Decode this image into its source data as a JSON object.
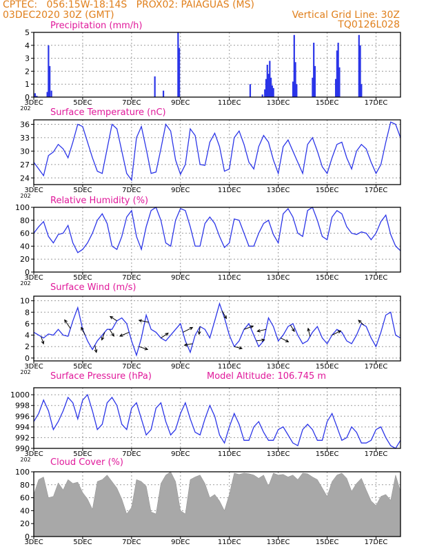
{
  "header": {
    "line1_left": "CPTEC:   056:15W-18:14S   PROX02: PAIAGUAS (MS)",
    "line2_left": "03DEC2020 30Z (GMT)",
    "line2_right": "Vertical Grid Line: 30Z",
    "line3_right": "TQ0126L028"
  },
  "colors": {
    "header": "#e07f1b",
    "title": "#e0189a",
    "series": "#2b35e8",
    "bars": "#2b35e8",
    "cloud": "#a8a8a8",
    "grid": "#9a9a9a"
  },
  "x_labels": [
    "3DEC",
    "5DEC",
    "7DEC",
    "9DEC",
    "11DEC",
    "13DEC",
    "15DEC",
    "17DEC"
  ],
  "x_year_fragment": "202",
  "chart_data": [
    {
      "id": "precip",
      "type": "bar",
      "title": "Precipitation (mm/h)",
      "ylim": [
        0,
        5
      ],
      "yticks": [
        0,
        1,
        2,
        3,
        4,
        5
      ],
      "points": [
        [
          0.05,
          0.3
        ],
        [
          0.12,
          0.1
        ],
        [
          0.55,
          0.4
        ],
        [
          0.6,
          4.0
        ],
        [
          0.65,
          2.4
        ],
        [
          0.72,
          0.5
        ],
        [
          4.95,
          1.6
        ],
        [
          5.3,
          0.5
        ],
        [
          5.9,
          5.0
        ],
        [
          5.95,
          3.8
        ],
        [
          8.85,
          1.0
        ],
        [
          9.35,
          0.2
        ],
        [
          9.45,
          0.6
        ],
        [
          9.5,
          1.4
        ],
        [
          9.55,
          2.5
        ],
        [
          9.6,
          1.8
        ],
        [
          9.65,
          2.8
        ],
        [
          9.7,
          1.5
        ],
        [
          9.75,
          0.9
        ],
        [
          9.8,
          0.7
        ],
        [
          10.6,
          1.2
        ],
        [
          10.65,
          4.8
        ],
        [
          10.7,
          2.7
        ],
        [
          10.75,
          1.0
        ],
        [
          11.4,
          1.5
        ],
        [
          11.45,
          4.2
        ],
        [
          11.5,
          2.4
        ],
        [
          12.35,
          1.4
        ],
        [
          12.4,
          3.6
        ],
        [
          12.45,
          4.2
        ],
        [
          12.5,
          2.3
        ],
        [
          13.3,
          4.8
        ],
        [
          13.35,
          4.0
        ],
        [
          13.4,
          1.0
        ]
      ]
    },
    {
      "id": "temp",
      "type": "line",
      "title": "Surface Temperature (nC)",
      "ylim": [
        22.5,
        37
      ],
      "yticks": [
        24,
        27,
        30,
        33,
        36
      ],
      "x": [
        0,
        0.2,
        0.4,
        0.6,
        0.8,
        1.0,
        1.2,
        1.4,
        1.6,
        1.8,
        2.0,
        2.2,
        2.4,
        2.6,
        2.8,
        3.0,
        3.2,
        3.4,
        3.6,
        3.8,
        4.0,
        4.2,
        4.4,
        4.6,
        4.8,
        5.0,
        5.2,
        5.4,
        5.6,
        5.8,
        6.0,
        6.2,
        6.4,
        6.6,
        6.8,
        7.0,
        7.2,
        7.4,
        7.6,
        7.8,
        8.0,
        8.2,
        8.4,
        8.6,
        8.8,
        9.0,
        9.2,
        9.4,
        9.6,
        9.8,
        10.0,
        10.2,
        10.4,
        10.6,
        10.8,
        11.0,
        11.2,
        11.4,
        11.6,
        11.8,
        12.0,
        12.2,
        12.4,
        12.6,
        12.8,
        13.0,
        13.2,
        13.4,
        13.6,
        13.8,
        14.0,
        14.2,
        14.4,
        14.6,
        14.8,
        15.0
      ],
      "values": [
        27.5,
        26,
        24.5,
        29,
        29.8,
        31.5,
        30.5,
        28.5,
        32,
        36,
        35.5,
        32,
        28.5,
        25.5,
        25,
        30.5,
        36,
        35,
        30,
        25,
        23.5,
        33,
        35.5,
        30.5,
        25,
        25.3,
        30.5,
        36,
        34.5,
        28,
        24.8,
        27,
        35,
        33.5,
        27,
        26.8,
        32,
        34,
        31,
        25.5,
        26,
        33,
        34.5,
        31.5,
        27.5,
        26,
        31,
        33.5,
        32,
        28,
        25,
        31,
        32.5,
        30,
        27.5,
        25,
        31.5,
        33,
        30,
        26.5,
        25,
        28.5,
        31.5,
        32,
        28.5,
        26,
        30,
        31.5,
        30.5,
        27.5,
        25,
        27,
        32,
        36.5,
        36,
        33
      ]
    },
    {
      "id": "rh",
      "type": "line",
      "title": "Relative Humidity (%)",
      "ylim": [
        0,
        100
      ],
      "yticks": [
        0,
        20,
        40,
        60,
        80,
        100
      ],
      "x": [
        0,
        0.2,
        0.4,
        0.6,
        0.8,
        1.0,
        1.2,
        1.4,
        1.6,
        1.8,
        2.0,
        2.2,
        2.4,
        2.6,
        2.8,
        3.0,
        3.2,
        3.4,
        3.6,
        3.8,
        4.0,
        4.2,
        4.4,
        4.6,
        4.8,
        5.0,
        5.2,
        5.4,
        5.6,
        5.8,
        6.0,
        6.2,
        6.4,
        6.6,
        6.8,
        7.0,
        7.2,
        7.4,
        7.6,
        7.8,
        8.0,
        8.2,
        8.4,
        8.6,
        8.8,
        9.0,
        9.2,
        9.4,
        9.6,
        9.8,
        10.0,
        10.2,
        10.4,
        10.6,
        10.8,
        11.0,
        11.2,
        11.4,
        11.6,
        11.8,
        12.0,
        12.2,
        12.4,
        12.6,
        12.8,
        13.0,
        13.2,
        13.4,
        13.6,
        13.8,
        14.0,
        14.2,
        14.4,
        14.6,
        14.8,
        15.0
      ],
      "values": [
        60,
        70,
        78,
        55,
        45,
        58,
        60,
        72,
        45,
        30,
        35,
        45,
        60,
        80,
        90,
        75,
        40,
        35,
        55,
        85,
        95,
        55,
        35,
        70,
        95,
        100,
        80,
        45,
        40,
        80,
        98,
        95,
        70,
        40,
        40,
        75,
        85,
        75,
        55,
        38,
        45,
        82,
        80,
        60,
        40,
        40,
        60,
        75,
        80,
        58,
        45,
        90,
        98,
        85,
        60,
        55,
        95,
        100,
        80,
        55,
        50,
        85,
        95,
        90,
        70,
        60,
        58,
        62,
        60,
        50,
        60,
        78,
        88,
        58,
        40,
        33
      ]
    },
    {
      "id": "wind",
      "type": "line",
      "title": "Surface Wind (m/s)",
      "ylim": [
        -0.5,
        10.8
      ],
      "yticks": [
        0,
        2,
        4,
        6,
        8,
        10
      ],
      "x": [
        0,
        0.2,
        0.4,
        0.6,
        0.8,
        1.0,
        1.2,
        1.4,
        1.6,
        1.8,
        2.0,
        2.2,
        2.4,
        2.6,
        2.8,
        3.0,
        3.2,
        3.4,
        3.6,
        3.8,
        4.0,
        4.2,
        4.4,
        4.6,
        4.8,
        5.0,
        5.2,
        5.4,
        5.6,
        5.8,
        6.0,
        6.2,
        6.4,
        6.6,
        6.8,
        7.0,
        7.2,
        7.4,
        7.6,
        7.8,
        8.0,
        8.2,
        8.4,
        8.6,
        8.8,
        9.0,
        9.2,
        9.4,
        9.6,
        9.8,
        10.0,
        10.2,
        10.4,
        10.6,
        10.8,
        11.0,
        11.2,
        11.4,
        11.6,
        11.8,
        12.0,
        12.2,
        12.4,
        12.6,
        12.8,
        13.0,
        13.2,
        13.4,
        13.6,
        13.8,
        14.0,
        14.2,
        14.4,
        14.6,
        14.8,
        15.0
      ],
      "values": [
        4.5,
        4,
        3.5,
        4.2,
        4,
        5,
        4,
        3.8,
        6.5,
        8.8,
        5,
        3,
        1.5,
        3,
        4,
        5,
        5,
        6.5,
        7,
        6,
        3,
        0.5,
        3.5,
        7.5,
        5,
        4.5,
        3.5,
        3,
        4,
        5,
        6,
        3,
        1,
        4,
        5.5,
        5,
        3.5,
        6.5,
        9.5,
        7,
        4,
        2,
        3,
        5,
        6,
        4,
        2,
        3,
        7,
        5.5,
        3,
        4,
        5.5,
        6,
        4,
        2.5,
        3,
        4.5,
        5.5,
        3.5,
        2.5,
        4,
        5,
        4.5,
        3,
        2.5,
        4,
        6,
        5.5,
        3.5,
        2,
        4.5,
        7.5,
        8,
        4,
        3.5
      ],
      "arrows": [
        [
          0.3,
          0.5,
          -1.5
        ],
        [
          1.5,
          -1.2,
          1.8
        ],
        [
          2.1,
          -0.8,
          1.6
        ],
        [
          2.5,
          0.3,
          -1.5
        ],
        [
          2.9,
          -0.6,
          -1.6
        ],
        [
          3.1,
          0.9,
          -1.4
        ],
        [
          3.4,
          -1.4,
          0.9
        ],
        [
          3.9,
          -1.9,
          -0.8
        ],
        [
          4.3,
          1.8,
          -0.6
        ],
        [
          4.7,
          -2.0,
          0.4
        ],
        [
          5.2,
          1.5,
          1.0
        ],
        [
          6.1,
          2.0,
          1.0
        ],
        [
          6.5,
          -1.7,
          -0.3
        ],
        [
          6.8,
          -0.2,
          -1.6
        ],
        [
          7.7,
          0.9,
          -1.6
        ],
        [
          8.2,
          1.6,
          -0.4
        ],
        [
          8.6,
          1.9,
          0.7
        ],
        [
          9.1,
          1.7,
          0.2
        ],
        [
          9.5,
          -1.8,
          -0.4
        ],
        [
          10.1,
          1.6,
          -0.8
        ],
        [
          10.5,
          0.8,
          -1.3
        ],
        [
          11.3,
          -0.4,
          1.7
        ],
        [
          12.2,
          1.8,
          0.9
        ],
        [
          13.5,
          -1.1,
          1.0
        ]
      ]
    },
    {
      "id": "pres",
      "type": "line",
      "title": "Surface Pressure (hPa)",
      "subtitle": "Model Altitude: 106.745 m",
      "ylim": [
        990,
        1001.3
      ],
      "yticks": [
        990,
        992,
        994,
        996,
        998,
        1000
      ],
      "x": [
        0,
        0.2,
        0.4,
        0.6,
        0.8,
        1.0,
        1.2,
        1.4,
        1.6,
        1.8,
        2.0,
        2.2,
        2.4,
        2.6,
        2.8,
        3.0,
        3.2,
        3.4,
        3.6,
        3.8,
        4.0,
        4.2,
        4.4,
        4.6,
        4.8,
        5.0,
        5.2,
        5.4,
        5.6,
        5.8,
        6.0,
        6.2,
        6.4,
        6.6,
        6.8,
        7.0,
        7.2,
        7.4,
        7.6,
        7.8,
        8.0,
        8.2,
        8.4,
        8.6,
        8.8,
        9.0,
        9.2,
        9.4,
        9.6,
        9.8,
        10.0,
        10.2,
        10.4,
        10.6,
        10.8,
        11.0,
        11.2,
        11.4,
        11.6,
        11.8,
        12.0,
        12.2,
        12.4,
        12.6,
        12.8,
        13.0,
        13.2,
        13.4,
        13.6,
        13.8,
        14.0,
        14.2,
        14.4,
        14.6,
        14.8,
        15.0
      ],
      "values": [
        995,
        996.5,
        999,
        997,
        993.5,
        995,
        997,
        999.5,
        998.5,
        995.5,
        999,
        1000,
        997,
        993.5,
        994.5,
        998.5,
        999.5,
        998,
        994.5,
        993.5,
        997.5,
        998.5,
        995.5,
        992.5,
        993.5,
        997.5,
        998.5,
        995,
        992.5,
        993.5,
        996.5,
        998.5,
        995.5,
        993,
        992.5,
        995.5,
        998,
        996,
        992.5,
        991,
        994,
        996.5,
        994.5,
        991.5,
        991.5,
        994,
        995,
        993,
        991.5,
        991.5,
        993.5,
        994,
        992.5,
        991,
        990.5,
        993.5,
        994.5,
        993.5,
        991.5,
        991.5,
        995,
        996.5,
        994,
        991.5,
        992,
        994,
        993,
        991,
        991,
        991.5,
        993.5,
        994,
        992,
        990.5,
        990,
        991.5
      ]
    },
    {
      "id": "cloud",
      "type": "area",
      "title": "Cloud Cover (%)",
      "ylim": [
        0,
        100
      ],
      "yticks": [
        0,
        20,
        40,
        60,
        80,
        100
      ],
      "x": [
        0,
        0.2,
        0.4,
        0.6,
        0.8,
        1.0,
        1.2,
        1.4,
        1.6,
        1.8,
        2.0,
        2.2,
        2.4,
        2.6,
        2.8,
        3.0,
        3.2,
        3.4,
        3.6,
        3.8,
        4.0,
        4.2,
        4.4,
        4.6,
        4.8,
        5.0,
        5.2,
        5.4,
        5.6,
        5.8,
        6.0,
        6.2,
        6.4,
        6.6,
        6.8,
        7.0,
        7.2,
        7.4,
        7.6,
        7.8,
        8.0,
        8.2,
        8.4,
        8.6,
        8.8,
        9.0,
        9.2,
        9.4,
        9.6,
        9.8,
        10.0,
        10.2,
        10.4,
        10.6,
        10.8,
        11.0,
        11.2,
        11.4,
        11.6,
        11.8,
        12.0,
        12.2,
        12.4,
        12.6,
        12.8,
        13.0,
        13.2,
        13.4,
        13.6,
        13.8,
        14.0,
        14.2,
        14.4,
        14.6,
        14.8,
        15.0
      ],
      "values": [
        65,
        88,
        92,
        60,
        62,
        83,
        72,
        88,
        82,
        84,
        68,
        58,
        42,
        85,
        88,
        95,
        85,
        75,
        58,
        35,
        45,
        88,
        85,
        78,
        38,
        35,
        82,
        95,
        100,
        85,
        40,
        35,
        88,
        92,
        95,
        82,
        60,
        65,
        55,
        40,
        65,
        98,
        96,
        98,
        97,
        95,
        90,
        95,
        78,
        98,
        95,
        96,
        92,
        95,
        88,
        98,
        97,
        92,
        88,
        75,
        62,
        85,
        95,
        98,
        90,
        70,
        82,
        90,
        72,
        55,
        48,
        62,
        65,
        56,
        95,
        70
      ]
    }
  ]
}
